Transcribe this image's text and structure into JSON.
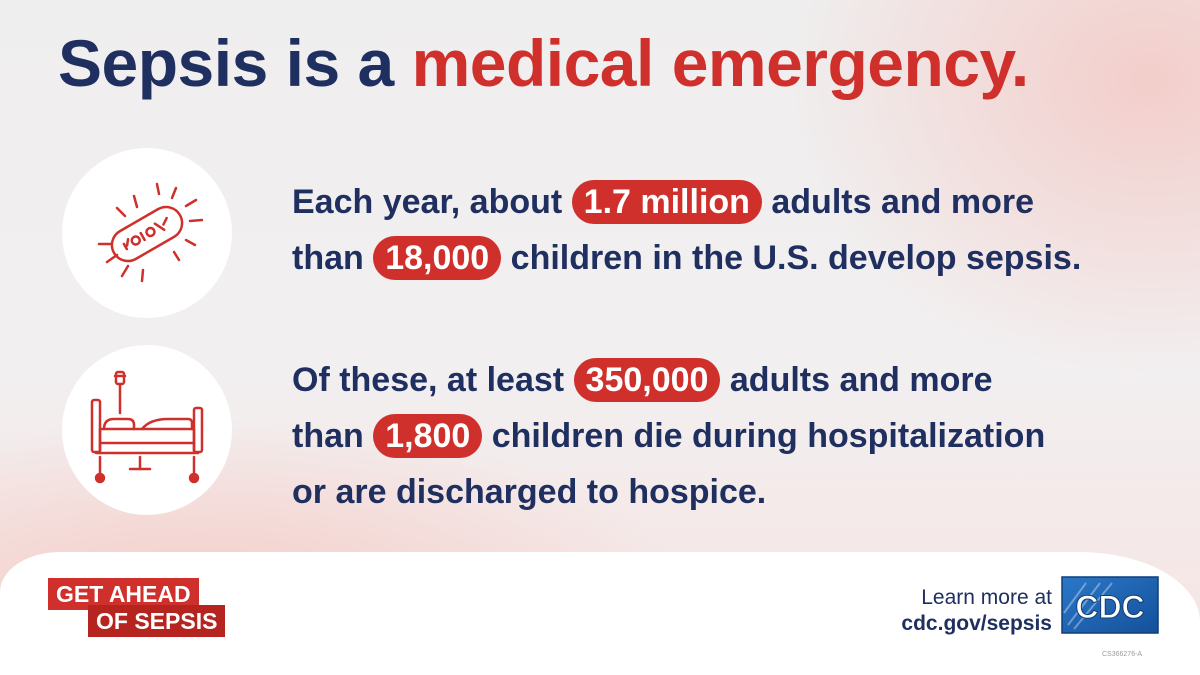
{
  "headline": {
    "part1": "Sepsis is a",
    "part2": "medical emergency."
  },
  "stats": [
    {
      "icon": "bacteria-icon",
      "segments": [
        {
          "text": "Each year, about ",
          "highlight": false
        },
        {
          "text": "1.7 million",
          "highlight": true
        },
        {
          "text": " adults and more",
          "highlight": false
        },
        {
          "br": true
        },
        {
          "text": "than ",
          "highlight": false
        },
        {
          "text": "18,000",
          "highlight": true
        },
        {
          "text": " children in the U.S. develop sepsis.",
          "highlight": false
        }
      ]
    },
    {
      "icon": "hospital-bed-icon",
      "segments": [
        {
          "text": "Of these, at least ",
          "highlight": false
        },
        {
          "text": "350,000",
          "highlight": true
        },
        {
          "text": " adults and more",
          "highlight": false
        },
        {
          "br": true
        },
        {
          "text": "than ",
          "highlight": false
        },
        {
          "text": "1,800",
          "highlight": true
        },
        {
          "text": " children die during hospitalization",
          "highlight": false
        },
        {
          "br": true
        },
        {
          "text": "or are discharged to hospice.",
          "highlight": false
        }
      ]
    }
  ],
  "footer": {
    "badge_line1": "GET AHEAD",
    "badge_line2": "OF SEPSIS",
    "learn_more": "Learn more at",
    "url": "cdc.gov/sepsis",
    "logo_text": "CDC",
    "code": "CS366276-A"
  },
  "colors": {
    "navy": "#1f2f60",
    "red": "#d0302b",
    "logo_blue": "#1d63b5"
  }
}
